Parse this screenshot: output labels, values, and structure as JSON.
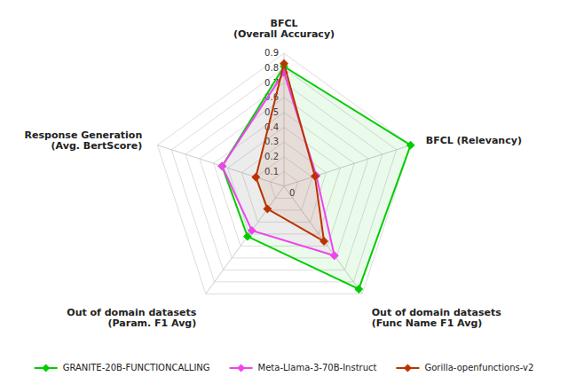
{
  "chart_data": {
    "type": "radar",
    "categories": [
      "BFCL\n(Overall Accuracy)",
      "BFCL (Relevancy)",
      "Out of domain datasets\n(Func Name F1 Avg)",
      "Out of domain datasets\n(Param. F1 Avg)",
      "Response Generation\n(Avg. BertScore)"
    ],
    "series": [
      {
        "name": "GRANITE-20B-FUNCTIONCALLING",
        "color": "#00cc00",
        "marker": "diamond",
        "values": [
          0.81,
          0.9,
          0.86,
          0.42,
          0.44
        ]
      },
      {
        "name": "Meta-Llama-3-70B-Instruct",
        "color": "#ee44ee",
        "marker": "diamond",
        "values": [
          0.77,
          0.23,
          0.58,
          0.37,
          0.44
        ]
      },
      {
        "name": "Gorilla-openfunctions-v2",
        "color": "#bb3300",
        "marker": "diamond",
        "values": [
          0.83,
          0.22,
          0.46,
          0.19,
          0.2
        ]
      }
    ],
    "ylim": [
      0,
      0.9
    ],
    "yticks": [
      0,
      0.1,
      0.2,
      0.3,
      0.4,
      0.5,
      0.6,
      0.7,
      0.8,
      0.9
    ],
    "grid": true,
    "legend": "bottom"
  }
}
